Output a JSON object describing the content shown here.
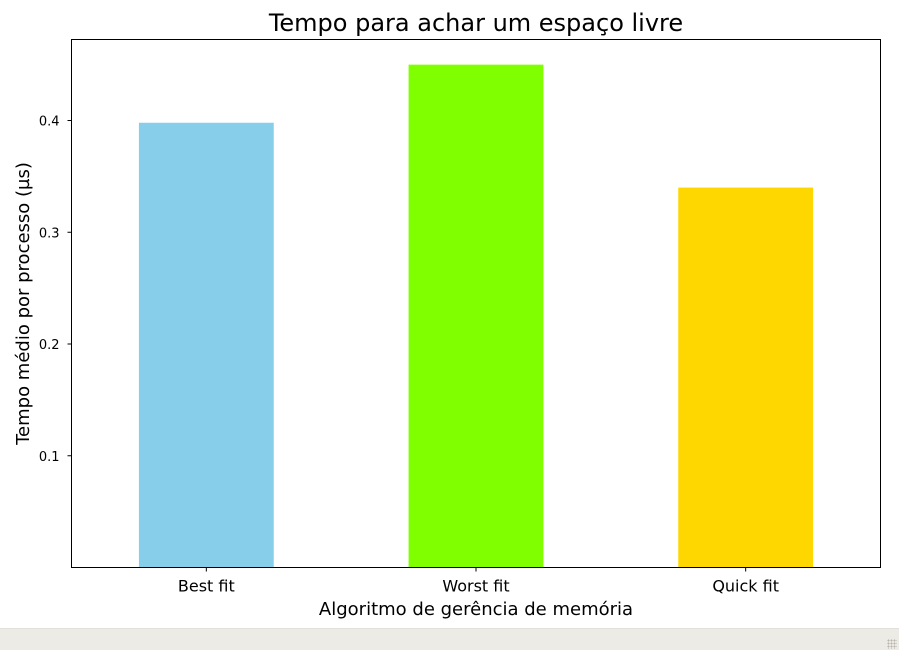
{
  "chart_data": {
    "type": "bar",
    "title": "Tempo para achar um espaço livre",
    "xlabel": "Algoritmo de gerência de memória",
    "ylabel": "Tempo médio por processo (µs)",
    "categories": [
      "Best fit",
      "Worst fit",
      "Quick fit"
    ],
    "values": [
      0.398,
      0.45,
      0.34
    ],
    "colors": [
      "#87ceeb",
      "#7fff00",
      "#ffd700"
    ],
    "yticks": [
      0.1,
      0.2,
      0.3,
      0.4
    ],
    "ytick_labels": [
      "0.1",
      "0.2",
      "0.3",
      "0.4"
    ],
    "ylim": [
      0,
      0.4725
    ],
    "grid": false,
    "legend": "none"
  }
}
